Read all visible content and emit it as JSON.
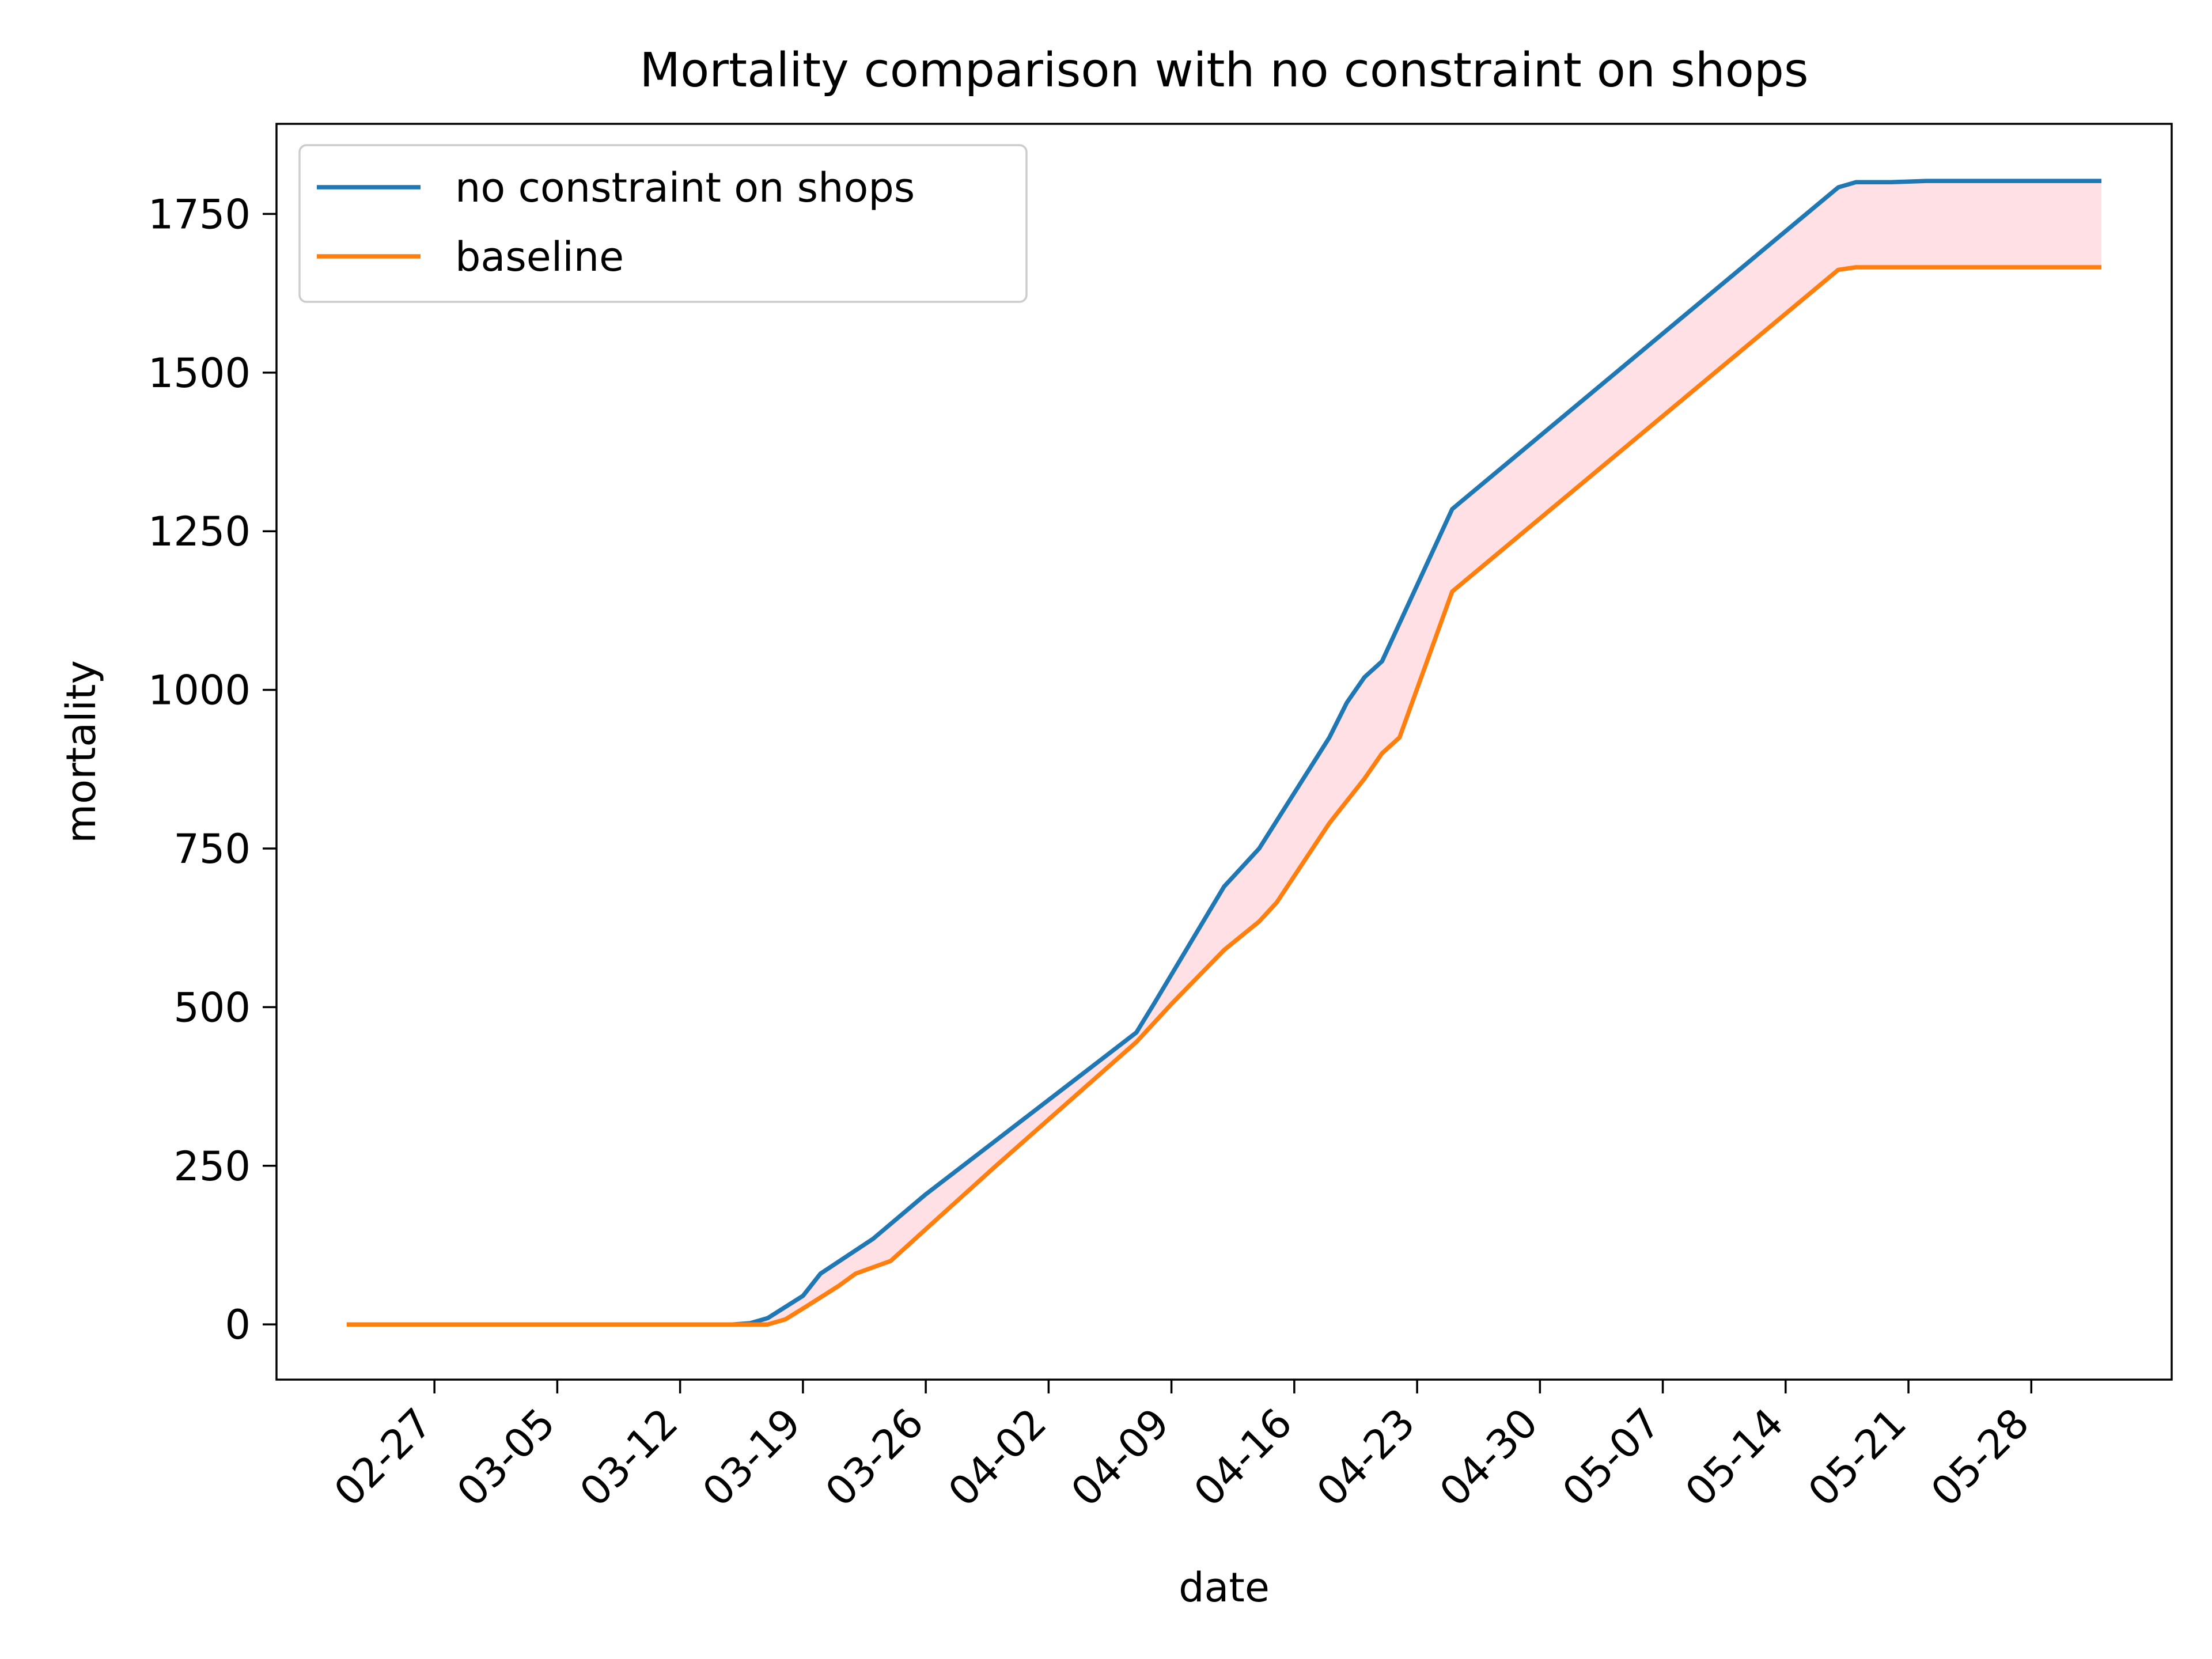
{
  "chart_data": {
    "type": "line",
    "title": "Mortality comparison with no constraint on shops",
    "xlabel": "date",
    "ylabel": "mortality",
    "x_start": "02-22",
    "x_end": "06-01",
    "xlim": [
      "02-18",
      "06-05"
    ],
    "ylim": [
      -87,
      1892
    ],
    "x_ticks": [
      "02-27",
      "03-05",
      "03-12",
      "03-19",
      "03-26",
      "04-02",
      "04-09",
      "04-16",
      "04-23",
      "04-30",
      "05-07",
      "05-14",
      "05-21",
      "05-28"
    ],
    "y_ticks": [
      0,
      250,
      500,
      750,
      1000,
      1250,
      1500,
      1750
    ],
    "grid": false,
    "legend_position": "upper-left",
    "fill_between": {
      "color": "#ffe0e4"
    },
    "series": [
      {
        "name": "no constraint on shops",
        "color": "#1f77b4",
        "points": [
          [
            "02-22",
            0
          ],
          [
            "03-15",
            0
          ],
          [
            "03-16",
            2
          ],
          [
            "03-17",
            10
          ],
          [
            "03-19",
            45
          ],
          [
            "03-20",
            80
          ],
          [
            "03-23",
            135
          ],
          [
            "03-26",
            205
          ],
          [
            "03-30",
            290
          ],
          [
            "04-03",
            375
          ],
          [
            "04-07",
            460
          ],
          [
            "04-08",
            505
          ],
          [
            "04-12",
            690
          ],
          [
            "04-13",
            720
          ],
          [
            "04-14",
            750
          ],
          [
            "04-18",
            925
          ],
          [
            "04-19",
            980
          ],
          [
            "04-20",
            1020
          ],
          [
            "04-21",
            1045
          ],
          [
            "04-25",
            1285
          ],
          [
            "05-17",
            1792
          ],
          [
            "05-18",
            1800
          ],
          [
            "05-20",
            1800
          ],
          [
            "05-22",
            1802
          ],
          [
            "06-01",
            1802
          ]
        ]
      },
      {
        "name": "baseline",
        "color": "#ff7f0e",
        "points": [
          [
            "02-22",
            0
          ],
          [
            "03-17",
            0
          ],
          [
            "03-18",
            8
          ],
          [
            "03-19",
            25
          ],
          [
            "03-21",
            60
          ],
          [
            "03-22",
            80
          ],
          [
            "03-24",
            100
          ],
          [
            "03-26",
            150
          ],
          [
            "03-30",
            250
          ],
          [
            "04-07",
            445
          ],
          [
            "04-09",
            505
          ],
          [
            "04-12",
            590
          ],
          [
            "04-14",
            635
          ],
          [
            "04-15",
            665
          ],
          [
            "04-18",
            790
          ],
          [
            "04-20",
            860
          ],
          [
            "04-21",
            900
          ],
          [
            "04-22",
            925
          ],
          [
            "04-25",
            1155
          ],
          [
            "05-17",
            1662
          ],
          [
            "05-18",
            1666
          ],
          [
            "05-20",
            1666
          ],
          [
            "06-01",
            1666
          ]
        ]
      }
    ]
  }
}
